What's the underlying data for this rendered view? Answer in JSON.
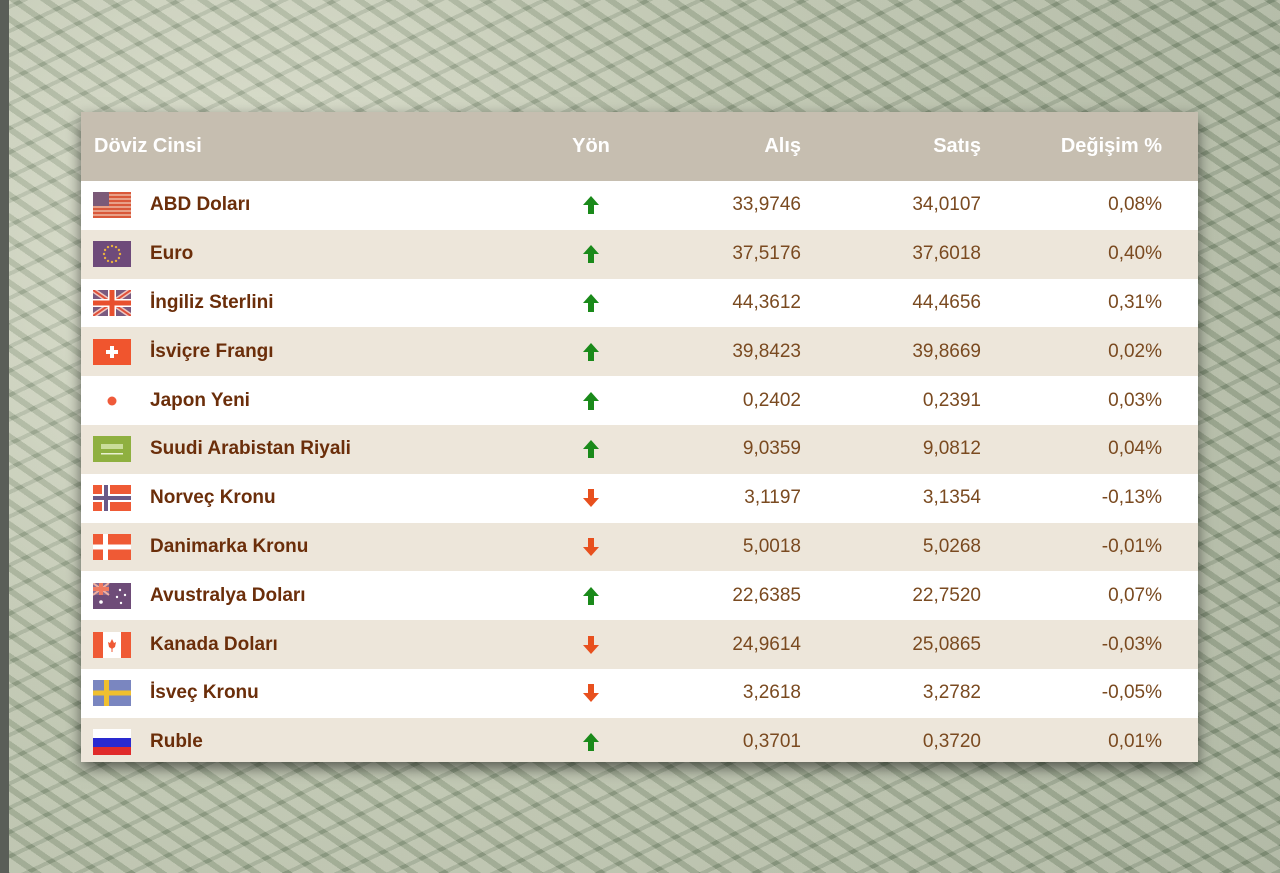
{
  "table": {
    "headers": {
      "currency": "Döviz Cinsi",
      "direction": "Yön",
      "buy": "Alış",
      "sell": "Satış",
      "change": "Değişim %"
    },
    "rows": [
      {
        "flag": "us-flag",
        "name": "ABD Doları",
        "direction": "up",
        "buy": "33,9746",
        "sell": "34,0107",
        "change": "0,08%"
      },
      {
        "flag": "eu-flag",
        "name": "Euro",
        "direction": "up",
        "buy": "37,5176",
        "sell": "37,6018",
        "change": "0,40%"
      },
      {
        "flag": "uk-flag",
        "name": "İngiliz Sterlini",
        "direction": "up",
        "buy": "44,3612",
        "sell": "44,4656",
        "change": "0,31%"
      },
      {
        "flag": "ch-flag",
        "name": "İsviçre Frangı",
        "direction": "up",
        "buy": "39,8423",
        "sell": "39,8669",
        "change": "0,02%"
      },
      {
        "flag": "jp-flag",
        "name": "Japon Yeni",
        "direction": "up",
        "buy": "0,2402",
        "sell": "0,2391",
        "change": "0,03%"
      },
      {
        "flag": "sa-flag",
        "name": "Suudi Arabistan Riyali",
        "direction": "up",
        "buy": "9,0359",
        "sell": "9,0812",
        "change": "0,04%"
      },
      {
        "flag": "no-flag",
        "name": "Norveç Kronu",
        "direction": "down",
        "buy": "3,1197",
        "sell": "3,1354",
        "change": "-0,13%"
      },
      {
        "flag": "dk-flag",
        "name": "Danimarka Kronu",
        "direction": "down",
        "buy": "5,0018",
        "sell": "5,0268",
        "change": "-0,01%"
      },
      {
        "flag": "au-flag",
        "name": "Avustralya Doları",
        "direction": "up",
        "buy": "22,6385",
        "sell": "22,7520",
        "change": "0,07%"
      },
      {
        "flag": "ca-flag",
        "name": "Kanada Doları",
        "direction": "down",
        "buy": "24,9614",
        "sell": "25,0865",
        "change": "-0,03%"
      },
      {
        "flag": "se-flag",
        "name": "İsveç Kronu",
        "direction": "down",
        "buy": "3,2618",
        "sell": "3,2782",
        "change": "-0,05%"
      },
      {
        "flag": "ru-flag",
        "name": "Ruble",
        "direction": "up",
        "buy": "0,3701",
        "sell": "0,3720",
        "change": "0,01%"
      }
    ]
  },
  "colors": {
    "header_bg": "#c6beb0",
    "row_alt_bg": "#ede6da",
    "name_text": "#6b2e0a",
    "up_arrow": "#1a8a1a",
    "down_arrow": "#e8501e"
  }
}
